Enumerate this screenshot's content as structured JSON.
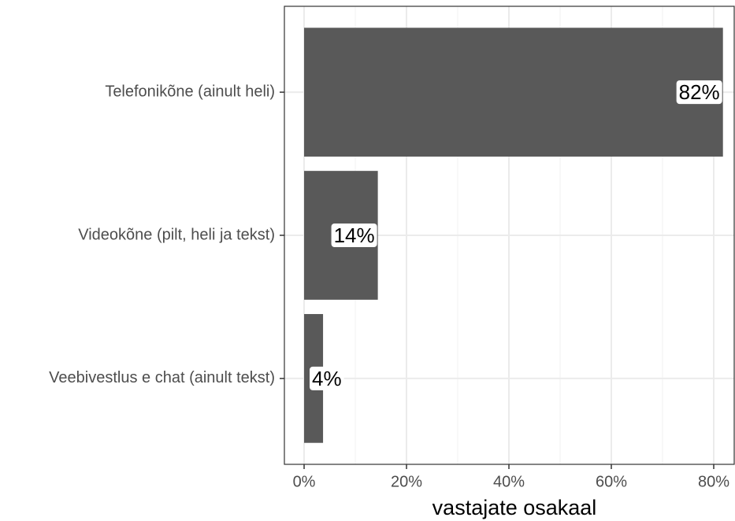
{
  "chart_data": {
    "type": "bar",
    "orientation": "horizontal",
    "x_label": "vastajate osakaal",
    "categories": [
      "Telefonikõne (ainult heli)",
      "Videokõne (pilt, heli ja tekst)",
      "Veebivestlus e chat (ainult tekst)"
    ],
    "values": [
      81.8,
      14.4,
      3.7
    ],
    "value_labels": [
      "82%",
      "14%",
      "4%"
    ],
    "color": "#595959",
    "xlim": [
      -3.85,
      84
    ],
    "xticks": [
      {
        "value": 0,
        "label": "0%"
      },
      {
        "value": 20,
        "label": "20%"
      },
      {
        "value": 40,
        "label": "40%"
      },
      {
        "value": 60,
        "label": "60%"
      },
      {
        "value": 80,
        "label": "80%"
      }
    ],
    "xminorticks": [
      10,
      30,
      50,
      70
    ],
    "grid": true
  }
}
